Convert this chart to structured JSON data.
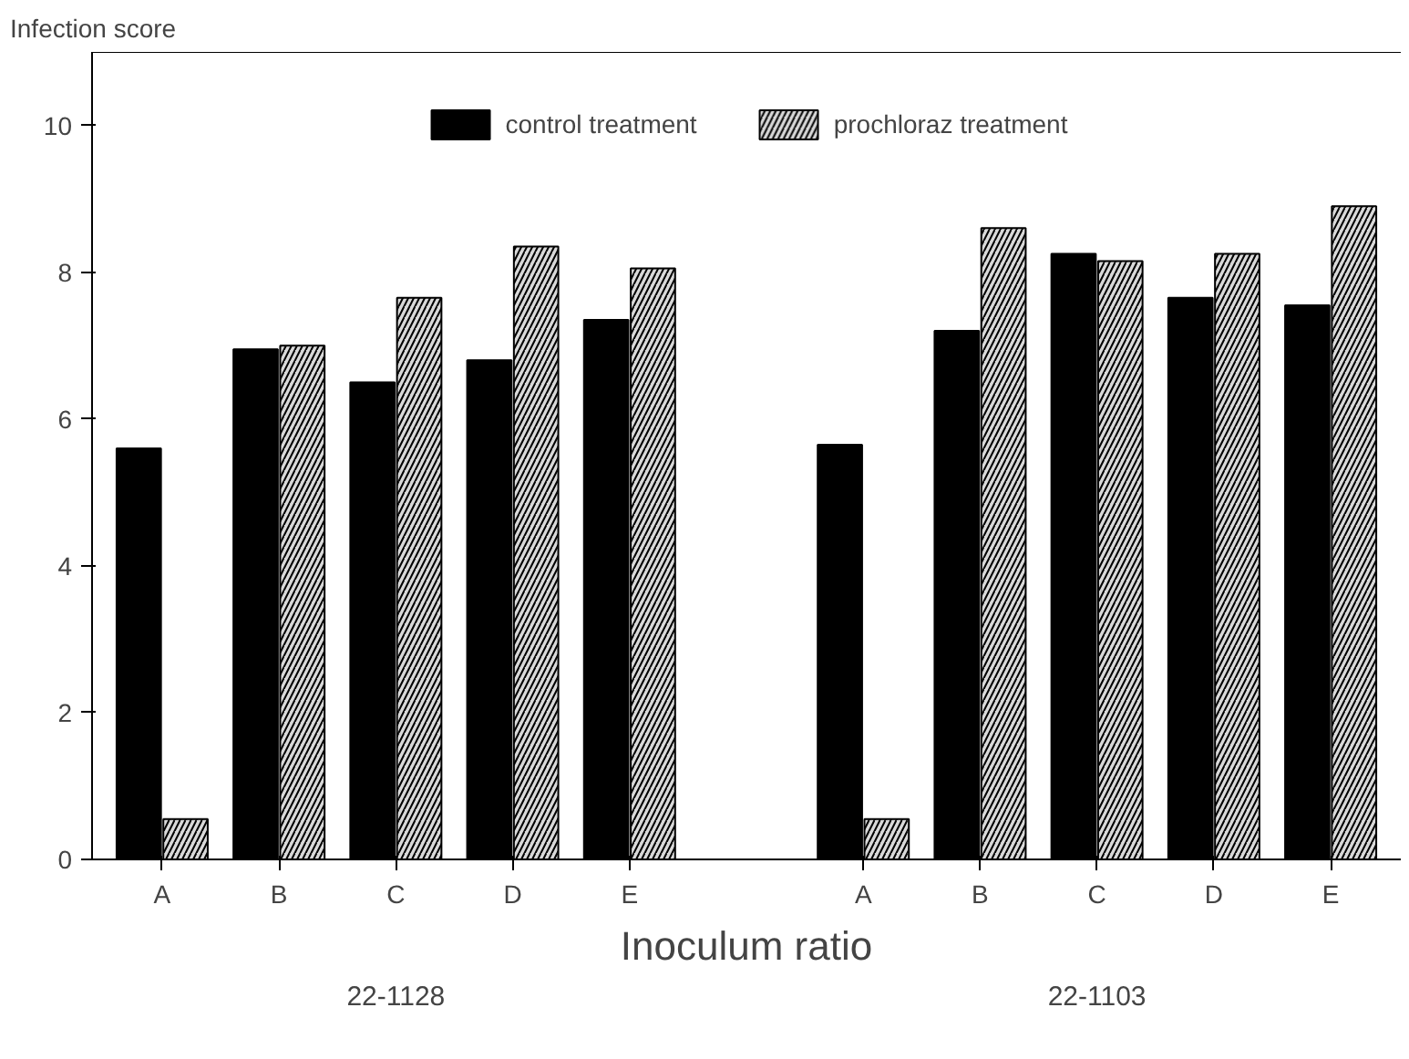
{
  "chart_data": {
    "type": "bar",
    "ylabel": "Infection score",
    "xlabel": "Inoculum ratio",
    "categories": [
      "A",
      "B",
      "C",
      "D",
      "E",
      null,
      "A",
      "B",
      "C",
      "D",
      "E"
    ],
    "series": [
      {
        "name": "control treatment",
        "color": "#000000",
        "values": [
          5.6,
          6.95,
          6.5,
          6.8,
          7.35,
          null,
          5.65,
          7.2,
          8.25,
          7.65,
          7.55
        ]
      },
      {
        "name": "prochloraz treatment",
        "color": "#d9d9d9",
        "values": [
          0.55,
          7.0,
          7.65,
          8.35,
          8.05,
          null,
          0.55,
          8.6,
          8.15,
          8.25,
          8.9
        ]
      }
    ],
    "annotations": [
      "22-1128",
      "22-1103"
    ],
    "ylim": [
      0,
      11
    ],
    "yticks": [
      0,
      2,
      4,
      6,
      8,
      10
    ],
    "grid": false,
    "legend": "top"
  }
}
